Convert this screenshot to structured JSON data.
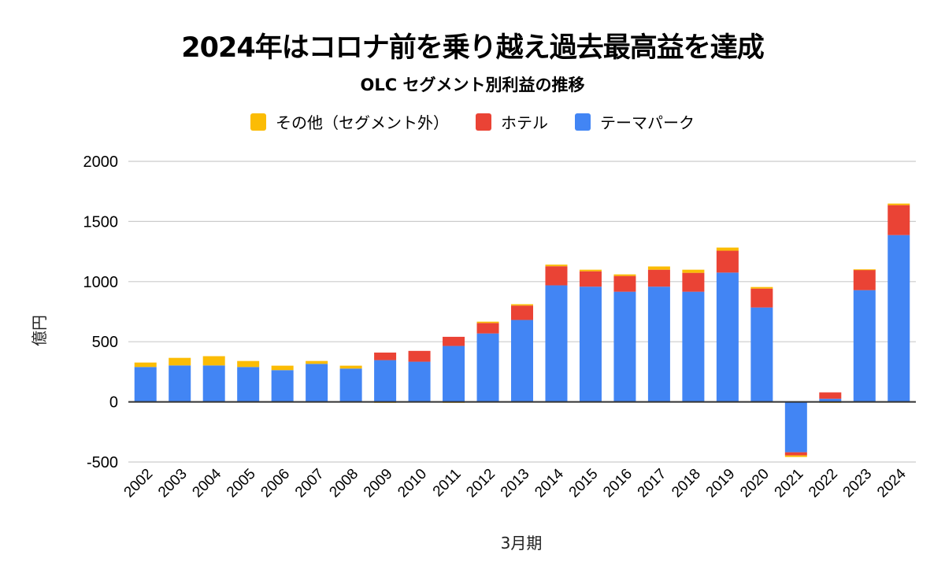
{
  "chart_data": {
    "type": "bar",
    "stacked": true,
    "title": "2024年はコロナ前を乗り越え過去最高益を達成",
    "subtitle": "OLC セグメント別利益の推移",
    "xlabel": "3月期",
    "ylabel": "億円",
    "ylim": [
      -500,
      2000
    ],
    "yticks": [
      2000,
      1500,
      1000,
      500,
      0,
      -500
    ],
    "grid": true,
    "legend_position": "top",
    "categories": [
      "2002",
      "2003",
      "2004",
      "2005",
      "2006",
      "2007",
      "2008",
      "2009",
      "2010",
      "2011",
      "2012",
      "2013",
      "2014",
      "2015",
      "2016",
      "2017",
      "2018",
      "2019",
      "2020",
      "2021",
      "2022",
      "2023",
      "2024"
    ],
    "series": [
      {
        "name": "テーマパーク",
        "color": "#4285F4",
        "values": [
          290,
          303,
          303,
          290,
          264,
          316,
          277,
          347,
          334,
          465,
          569,
          681,
          969,
          958,
          916,
          958,
          916,
          1075,
          785,
          -419,
          26,
          929,
          1387
        ]
      },
      {
        "name": "ホテル",
        "color": "#EA4335",
        "values": [
          0,
          0,
          0,
          0,
          0,
          0,
          0,
          63,
          90,
          76,
          87,
          120,
          159,
          128,
          131,
          141,
          157,
          182,
          157,
          -26,
          53,
          170,
          249
        ]
      },
      {
        "name": "その他（セグメント外）",
        "color": "#FBBC04",
        "values": [
          37,
          63,
          77,
          50,
          37,
          24,
          24,
          -8,
          0,
          -8,
          11,
          11,
          13,
          13,
          13,
          27,
          26,
          26,
          13,
          -13,
          -8,
          3,
          13
        ]
      }
    ]
  },
  "legend": [
    {
      "label": "その他（セグメント外）",
      "color": "#FBBC04"
    },
    {
      "label": "ホテル",
      "color": "#EA4335"
    },
    {
      "label": "テーマパーク",
      "color": "#4285F4"
    }
  ]
}
